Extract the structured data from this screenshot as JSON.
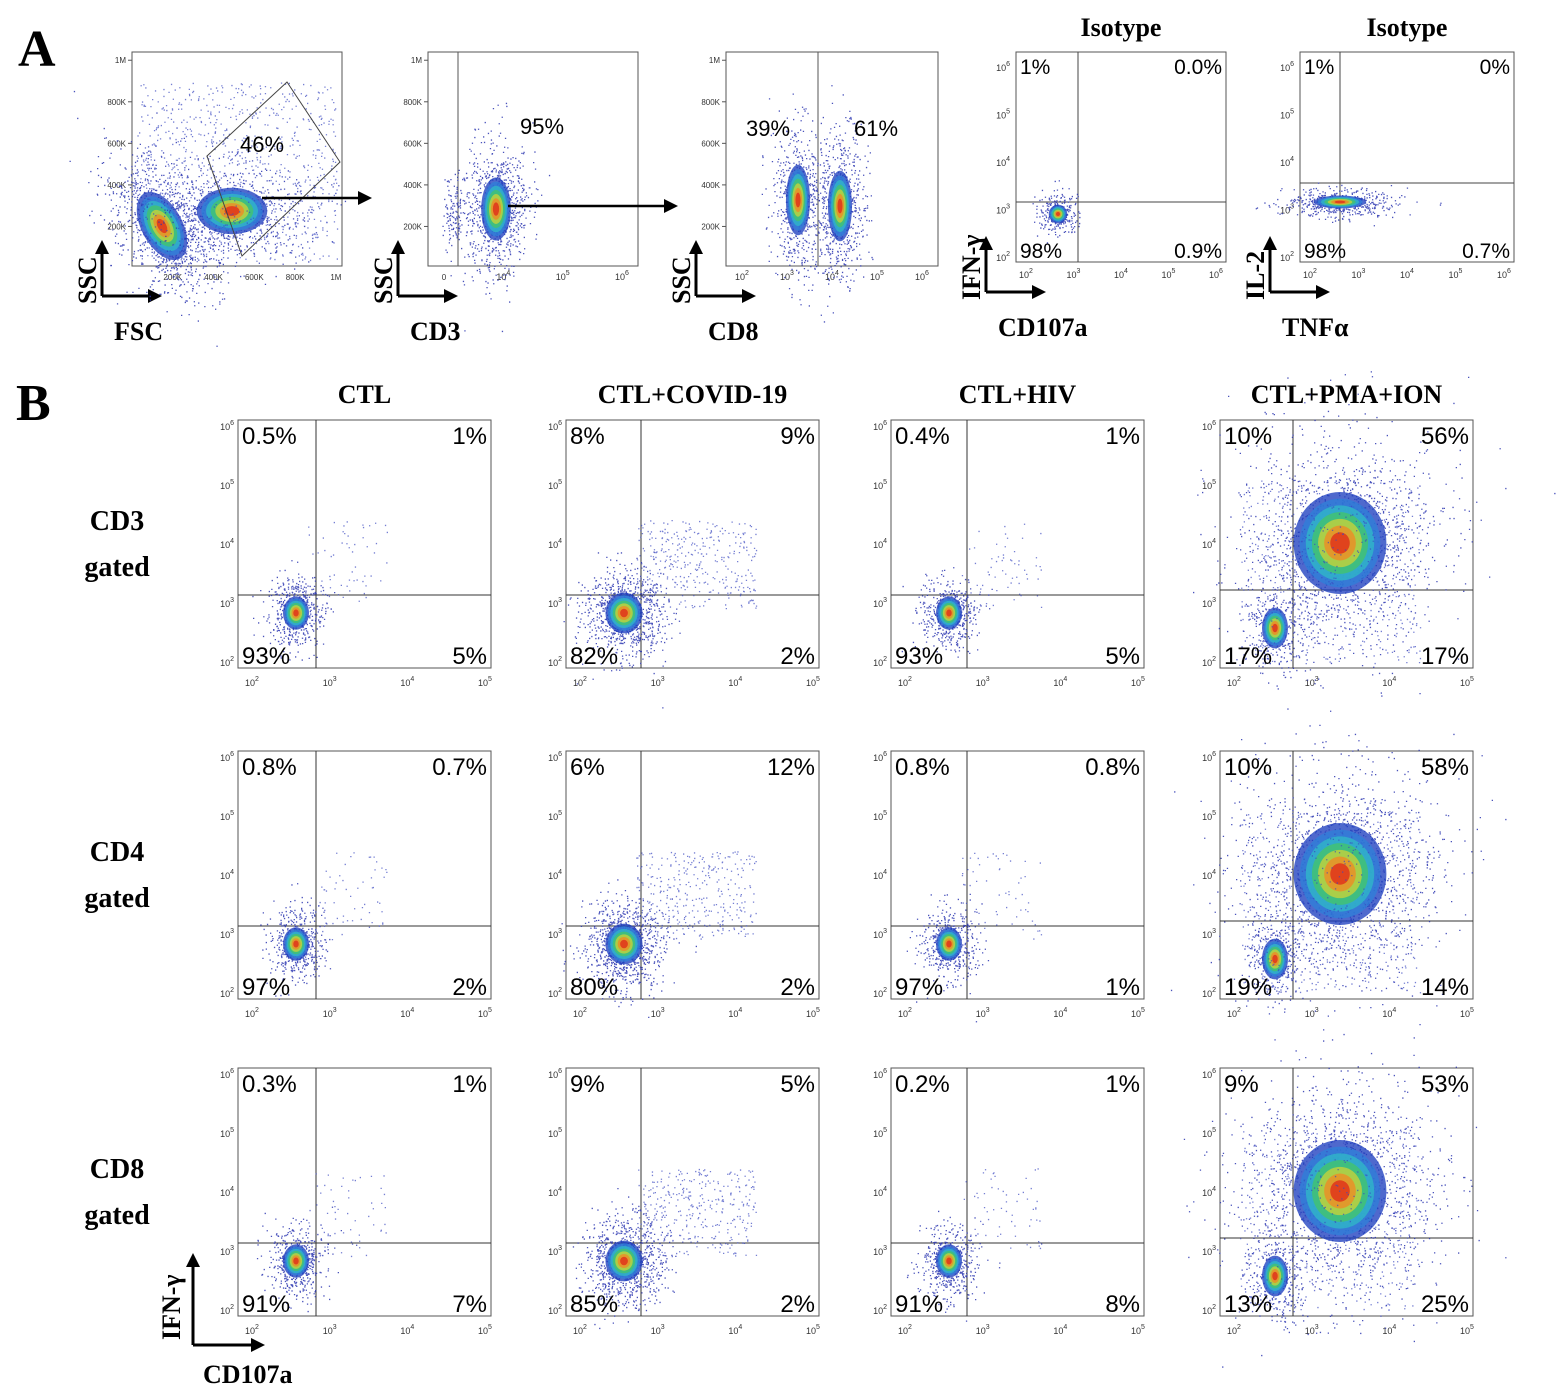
{
  "panel_letters": [
    "A",
    "B"
  ],
  "chart_data": [
    {
      "type": "scatter",
      "panel": "A-1",
      "xlabel": "FSC",
      "ylabel": "SSC",
      "xticks": [
        "200K",
        "400K",
        "600K",
        "800K",
        "1M"
      ],
      "yticks": [
        "200K",
        "400K",
        "600K",
        "800K",
        "1M"
      ],
      "gate_label": "46%"
    },
    {
      "type": "scatter",
      "panel": "A-2",
      "xlabel": "CD3",
      "ylabel": "SSC",
      "xticks": [
        "0",
        "10^4",
        "10^5",
        "10^6"
      ],
      "yticks": [
        "200K",
        "400K",
        "600K",
        "800K",
        "1M"
      ],
      "gate_label": "95%"
    },
    {
      "type": "scatter",
      "panel": "A-3",
      "xlabel": "CD8",
      "ylabel": "SSC",
      "xticks": [
        "10^2",
        "10^3",
        "10^4",
        "10^5",
        "10^6"
      ],
      "yticks": [
        "200K",
        "400K",
        "600K",
        "800K",
        "1M"
      ],
      "left_label": "39%",
      "right_label": "61%"
    },
    {
      "type": "scatter",
      "panel": "A-4",
      "title": "Isotype",
      "xlabel": "CD107a",
      "ylabel": "IFN-γ",
      "quadrants": {
        "ul": "1%",
        "ur": "0.0%",
        "ll": "98%",
        "lr": "0.9%"
      }
    },
    {
      "type": "scatter",
      "panel": "A-5",
      "title": "Isotype",
      "xlabel": "TNFα",
      "ylabel": "IL-2",
      "quadrants": {
        "ul": "1%",
        "ur": "0%",
        "ll": "98%",
        "lr": "0.7%"
      }
    }
  ],
  "grid_columns": [
    "CTL",
    "CTL+COVID-19",
    "CTL+HIV",
    "CTL+PMA+ION"
  ],
  "grid_rows": [
    {
      "label": [
        "CD3",
        "gated"
      ],
      "quadrants": [
        {
          "ul": "0.5%",
          "ur": "1%",
          "ll": "93%",
          "lr": "5%"
        },
        {
          "ul": "8%",
          "ur": "9%",
          "ll": "82%",
          "lr": "2%"
        },
        {
          "ul": "0.4%",
          "ur": "1%",
          "ll": "93%",
          "lr": "5%"
        },
        {
          "ul": "10%",
          "ur": "56%",
          "ll": "17%",
          "lr": "17%"
        }
      ]
    },
    {
      "label": [
        "CD4",
        "gated"
      ],
      "quadrants": [
        {
          "ul": "0.8%",
          "ur": "0.7%",
          "ll": "97%",
          "lr": "2%"
        },
        {
          "ul": "6%",
          "ur": "12%",
          "ll": "80%",
          "lr": "2%"
        },
        {
          "ul": "0.8%",
          "ur": "0.8%",
          "ll": "97%",
          "lr": "1%"
        },
        {
          "ul": "10%",
          "ur": "58%",
          "ll": "19%",
          "lr": "14%"
        }
      ]
    },
    {
      "label": [
        "CD8",
        "gated"
      ],
      "quadrants": [
        {
          "ul": "0.3%",
          "ur": "1%",
          "ll": "91%",
          "lr": "7%"
        },
        {
          "ul": "9%",
          "ur": "5%",
          "ll": "85%",
          "lr": "2%"
        },
        {
          "ul": "0.2%",
          "ur": "1%",
          "ll": "91%",
          "lr": "8%"
        },
        {
          "ul": "9%",
          "ur": "53%",
          "ll": "13%",
          "lr": "25%"
        }
      ]
    }
  ],
  "grid_axes": {
    "xlabel": "CD107a",
    "ylabel": "IFN-γ",
    "xticks": [
      "10^2",
      "10^3",
      "10^4",
      "10^5"
    ],
    "yticks": [
      "10^2",
      "10^3",
      "10^4",
      "10^5",
      "10^6"
    ]
  }
}
